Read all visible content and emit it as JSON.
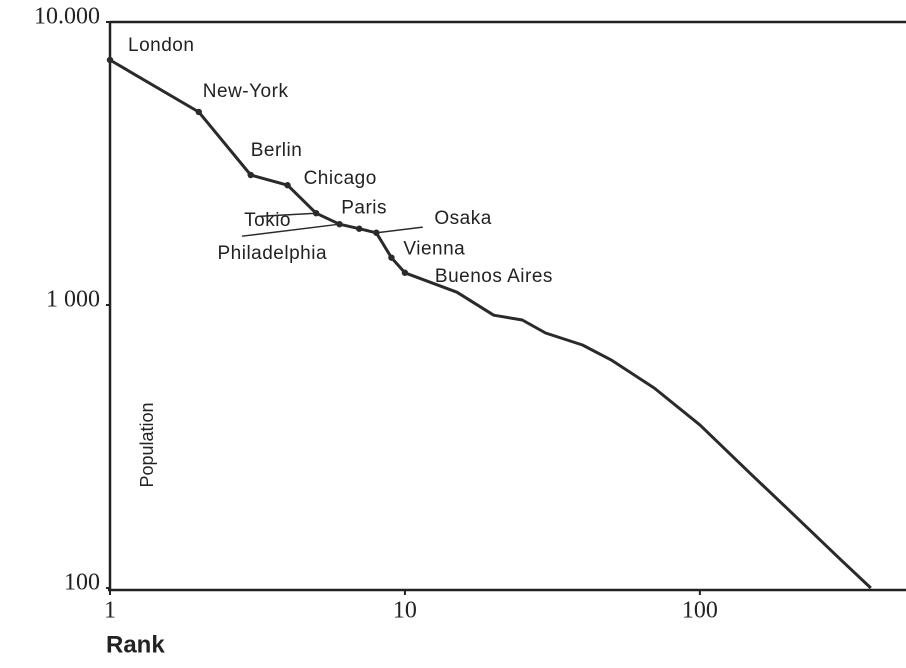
{
  "chart_data": {
    "type": "line",
    "log_x": true,
    "log_y": true,
    "x_label": "Rank",
    "y_label": "Population",
    "x": [
      1,
      2,
      3,
      4,
      5,
      6,
      7,
      8,
      9,
      10,
      15,
      20,
      25,
      30,
      40,
      50,
      70,
      100,
      150,
      200,
      300,
      380
    ],
    "values": [
      7340,
      4810,
      2880,
      2650,
      2110,
      1930,
      1860,
      1800,
      1470,
      1300,
      1110,
      920,
      885,
      796,
      722,
      640,
      509,
      377,
      251,
      189,
      126,
      100
    ],
    "labels": [
      "London",
      "New-York",
      "Berlin",
      "Chicago",
      "Tokio",
      "Philadelphia",
      "Paris",
      "Osaka",
      "Vienna",
      "Buenos Aires",
      null,
      null,
      null,
      null,
      null,
      null,
      null,
      null,
      null,
      null,
      null,
      null
    ],
    "color": "#2a2a2a",
    "xlim": [
      1,
      500
    ],
    "xticks": [
      1,
      10,
      100
    ],
    "ylim": [
      100,
      10000
    ],
    "yticks": [
      100,
      {
        "value": 1000,
        "label": "1 000"
      },
      {
        "value": 10000,
        "label": "10.000"
      }
    ]
  }
}
